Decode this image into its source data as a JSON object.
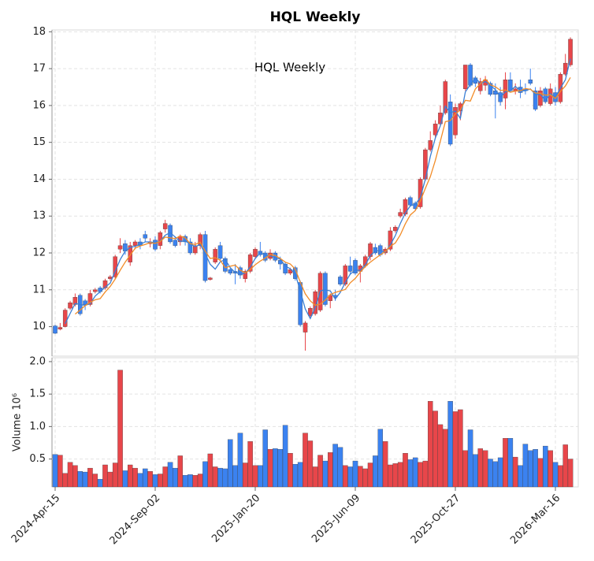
{
  "chart_data": {
    "type": "candlestick",
    "title": "HQL  Weekly",
    "annotation": "HQL  Weekly",
    "volume_label": "Volume  10⁶",
    "up_color": "#e8464a",
    "down_color": "#3b82f0",
    "grid": true,
    "categories": [
      "2024-Apr-15",
      null,
      null,
      null,
      null,
      null,
      null,
      null,
      null,
      null,
      null,
      null,
      null,
      null,
      null,
      null,
      null,
      null,
      null,
      null,
      "2024-Sep-02",
      null,
      null,
      null,
      null,
      null,
      null,
      null,
      null,
      null,
      null,
      null,
      null,
      null,
      null,
      null,
      null,
      null,
      null,
      null,
      "2025-Jan-20",
      null,
      null,
      null,
      null,
      null,
      null,
      null,
      null,
      null,
      null,
      null,
      null,
      null,
      null,
      null,
      null,
      null,
      null,
      null,
      "2025-Jun-09",
      null,
      null,
      null,
      null,
      null,
      null,
      null,
      null,
      null,
      null,
      null,
      null,
      null,
      null,
      null,
      null,
      null,
      null,
      null,
      "2025-Oct-27",
      null,
      null,
      null,
      null,
      null,
      null,
      null,
      null,
      null,
      null,
      null,
      null,
      null,
      null,
      null,
      null,
      null,
      null,
      null,
      "2026-Mar-16",
      null,
      null,
      null
    ],
    "open": [
      10.02,
      9.93,
      10.0,
      10.5,
      10.6,
      10.85,
      10.7,
      10.6,
      10.95,
      11.05,
      11.05,
      11.3,
      11.35,
      12.1,
      12.25,
      11.75,
      12.2,
      12.3,
      12.5,
      12.25,
      12.35,
      12.2,
      12.65,
      12.75,
      12.35,
      12.3,
      12.45,
      12.3,
      12.0,
      12.2,
      12.5,
      11.28,
      11.75,
      12.2,
      11.85,
      11.55,
      11.5,
      11.6,
      11.3,
      11.5,
      11.9,
      12.05,
      12.0,
      11.85,
      12.0,
      11.8,
      11.7,
      11.45,
      11.6,
      11.2,
      9.85,
      10.3,
      10.35,
      10.45,
      11.45,
      10.7,
      10.85,
      11.35,
      11.15,
      11.65,
      11.8,
      11.5,
      11.65,
      11.9,
      12.15,
      12.2,
      12.0,
      12.1,
      12.6,
      13.0,
      13.05,
      13.5,
      13.35,
      13.25,
      14.0,
      14.8,
      15.2,
      15.5,
      15.8,
      16.1,
      15.2,
      15.85,
      16.45,
      17.1,
      16.75,
      16.4,
      16.55,
      16.6,
      16.4,
      16.35,
      16.2,
      16.7,
      16.4,
      16.5,
      16.45,
      16.7,
      16.4,
      16.0,
      16.45,
      16.05,
      16.35,
      16.1,
      16.85,
      17.1
    ],
    "high": [
      10.05,
      10.1,
      10.5,
      10.7,
      10.9,
      10.9,
      10.75,
      11.0,
      11.05,
      11.1,
      11.3,
      11.4,
      11.95,
      12.4,
      12.35,
      12.3,
      12.35,
      12.4,
      12.6,
      12.4,
      12.45,
      12.6,
      12.9,
      12.8,
      12.45,
      12.5,
      12.5,
      12.4,
      12.3,
      12.55,
      12.6,
      11.35,
      12.15,
      12.3,
      11.9,
      11.6,
      11.7,
      11.65,
      11.55,
      12.0,
      12.15,
      12.3,
      12.05,
      12.1,
      12.05,
      11.9,
      11.75,
      11.6,
      11.65,
      11.25,
      10.15,
      10.55,
      11.0,
      11.5,
      11.5,
      10.9,
      11.0,
      11.4,
      11.7,
      11.9,
      11.85,
      11.7,
      11.95,
      12.3,
      12.25,
      12.25,
      12.15,
      12.7,
      12.75,
      13.2,
      13.5,
      13.55,
      13.4,
      14.05,
      14.85,
      15.3,
      15.6,
      16.0,
      16.7,
      16.3,
      16.05,
      16.1,
      17.1,
      17.15,
      16.8,
      16.75,
      16.8,
      16.65,
      16.6,
      16.5,
      16.9,
      16.9,
      16.6,
      16.7,
      16.6,
      17.0,
      16.5,
      16.5,
      16.5,
      16.6,
      16.5,
      16.9,
      17.4,
      17.85
    ],
    "low": [
      9.8,
      9.9,
      9.98,
      10.45,
      10.55,
      10.3,
      10.45,
      10.55,
      10.9,
      10.9,
      11.0,
      11.25,
      11.3,
      12.0,
      11.95,
      11.65,
      12.1,
      12.1,
      12.3,
      12.15,
      12.05,
      12.1,
      12.55,
      12.25,
      12.15,
      12.2,
      12.2,
      11.95,
      11.95,
      12.1,
      11.2,
      11.25,
      11.7,
      11.8,
      11.45,
      11.4,
      11.15,
      11.3,
      11.2,
      11.45,
      11.85,
      11.9,
      11.75,
      11.8,
      11.75,
      11.55,
      11.4,
      11.4,
      11.25,
      10.0,
      9.35,
      10.25,
      10.3,
      10.4,
      10.55,
      10.5,
      10.7,
      11.1,
      11.1,
      11.4,
      11.4,
      11.2,
      11.6,
      11.8,
      11.95,
      11.9,
      11.95,
      12.05,
      12.55,
      12.95,
      13.0,
      13.25,
      13.15,
      13.2,
      13.95,
      14.75,
      15.1,
      15.45,
      15.75,
      14.9,
      15.1,
      15.6,
      16.4,
      16.5,
      16.5,
      16.3,
      16.4,
      16.25,
      15.65,
      16.0,
      15.9,
      16.35,
      16.3,
      16.2,
      16.3,
      16.55,
      15.85,
      15.95,
      16.05,
      16.0,
      16.0,
      16.05,
      16.8,
      17.05
    ],
    "close": [
      9.82,
      9.98,
      10.45,
      10.65,
      10.8,
      10.35,
      10.6,
      10.9,
      11.0,
      10.95,
      11.25,
      11.35,
      11.9,
      12.2,
      12.05,
      12.2,
      12.3,
      12.2,
      12.4,
      12.3,
      12.1,
      12.55,
      12.8,
      12.3,
      12.2,
      12.45,
      12.3,
      12.0,
      12.2,
      12.5,
      11.25,
      11.32,
      12.1,
      11.85,
      11.5,
      11.45,
      11.45,
      11.4,
      11.5,
      11.95,
      12.1,
      11.95,
      11.8,
      12.0,
      11.8,
      11.7,
      11.45,
      11.55,
      11.3,
      10.05,
      10.1,
      10.5,
      10.95,
      11.45,
      10.6,
      10.85,
      10.8,
      11.15,
      11.65,
      11.5,
      11.45,
      11.65,
      11.9,
      12.25,
      12.0,
      11.95,
      12.1,
      12.6,
      12.7,
      13.1,
      13.45,
      13.3,
      13.2,
      14.0,
      14.8,
      15.05,
      15.5,
      15.8,
      16.65,
      14.95,
      15.95,
      16.05,
      17.1,
      16.55,
      16.6,
      16.65,
      16.7,
      16.3,
      16.3,
      16.1,
      16.7,
      16.4,
      16.45,
      16.35,
      16.4,
      16.6,
      15.9,
      16.4,
      16.1,
      16.45,
      16.1,
      16.85,
      17.15,
      17.8
    ],
    "volume": [
      0.57,
      0.56,
      0.28,
      0.45,
      0.4,
      0.31,
      0.3,
      0.36,
      0.27,
      0.19,
      0.41,
      0.3,
      0.44,
      1.87,
      0.32,
      0.41,
      0.36,
      0.28,
      0.35,
      0.31,
      0.26,
      0.27,
      0.38,
      0.45,
      0.36,
      0.55,
      0.25,
      0.26,
      0.25,
      0.27,
      0.46,
      0.58,
      0.38,
      0.36,
      0.35,
      0.8,
      0.4,
      0.9,
      0.44,
      0.77,
      0.4,
      0.4,
      0.95,
      0.65,
      0.66,
      0.65,
      1.02,
      0.59,
      0.42,
      0.45,
      0.9,
      0.78,
      0.38,
      0.56,
      0.47,
      0.6,
      0.73,
      0.68,
      0.4,
      0.38,
      0.47,
      0.39,
      0.35,
      0.44,
      0.55,
      0.96,
      0.77,
      0.41,
      0.43,
      0.45,
      0.59,
      0.49,
      0.52,
      0.45,
      0.47,
      1.39,
      1.24,
      1.03,
      0.96,
      1.39,
      1.23,
      1.26,
      0.63,
      0.95,
      0.57,
      0.66,
      0.63,
      0.5,
      0.46,
      0.52,
      0.82,
      0.82,
      0.53,
      0.4,
      0.73,
      0.63,
      0.65,
      0.51,
      0.7,
      0.63,
      0.45,
      0.4,
      0.72,
      0.5
    ],
    "moving_averages": [
      {
        "color": "#3a7fd5",
        "values": [
          null,
          null,
          10.08,
          10.36,
          10.63,
          10.6,
          10.58,
          10.62,
          10.83,
          10.95,
          11.07,
          11.18,
          11.5,
          11.82,
          12.05,
          12.15,
          12.18,
          12.23,
          12.3,
          12.3,
          12.27,
          12.32,
          12.48,
          12.55,
          12.43,
          12.32,
          12.32,
          12.25,
          12.17,
          12.23,
          11.98,
          11.69,
          11.56,
          11.76,
          11.82,
          11.6,
          11.47,
          11.43,
          11.45,
          11.62,
          11.85,
          12.0,
          11.95,
          11.92,
          11.87,
          11.83,
          11.65,
          11.57,
          11.43,
          10.97,
          10.48,
          10.22,
          10.52,
          10.97,
          11.0,
          10.97,
          10.75,
          10.93,
          11.2,
          11.43,
          11.53,
          11.53,
          11.67,
          11.93,
          12.05,
          12.07,
          12.02,
          12.22,
          12.47,
          12.8,
          13.08,
          13.28,
          13.32,
          13.5,
          14.0,
          14.62,
          15.12,
          15.45,
          15.98,
          15.8,
          15.85,
          15.65,
          16.37,
          16.57,
          16.75,
          16.6,
          16.65,
          16.55,
          16.43,
          16.23,
          16.37,
          16.4,
          16.52,
          16.4,
          16.4,
          16.45,
          16.3,
          16.3,
          16.13,
          16.32,
          16.22,
          16.47,
          16.7,
          17.27
        ]
      },
      {
        "color": "#f28c28",
        "values": [
          null,
          null,
          null,
          null,
          10.34,
          10.45,
          10.57,
          10.66,
          10.73,
          10.76,
          10.94,
          11.09,
          11.29,
          11.53,
          11.75,
          11.94,
          12.13,
          12.19,
          12.23,
          12.28,
          12.26,
          12.31,
          12.43,
          12.41,
          12.39,
          12.46,
          12.41,
          12.25,
          12.23,
          12.29,
          12.05,
          11.85,
          11.87,
          11.8,
          11.6,
          11.64,
          11.67,
          11.53,
          11.46,
          11.55,
          11.68,
          11.78,
          11.86,
          11.96,
          11.93,
          11.85,
          11.75,
          11.7,
          11.56,
          11.21,
          10.89,
          10.7,
          10.58,
          10.61,
          10.72,
          10.87,
          10.93,
          10.97,
          11.01,
          11.19,
          11.31,
          11.48,
          11.63,
          11.75,
          11.85,
          11.95,
          12.04,
          12.18,
          12.27,
          12.49,
          12.79,
          13.03,
          13.15,
          13.41,
          13.75,
          14.07,
          14.51,
          15.03,
          15.56,
          15.59,
          15.77,
          15.88,
          16.14,
          16.12,
          16.45,
          16.59,
          16.72,
          16.56,
          16.51,
          16.41,
          16.42,
          16.36,
          16.39,
          16.4,
          16.46,
          16.44,
          16.34,
          16.33,
          16.28,
          16.29,
          16.19,
          16.38,
          16.53,
          16.76
        ]
      }
    ],
    "ylim": [
      9.2,
      18.05
    ],
    "yticks": [
      10,
      11,
      12,
      13,
      14,
      15,
      16,
      17,
      18
    ],
    "volume_ylim": [
      0.07,
      2.06
    ],
    "volume_yticks": [
      0.5,
      {
        "value": 1,
        "label": "1.0"
      },
      1.5,
      {
        "value": 2,
        "label": "2.0"
      }
    ]
  }
}
